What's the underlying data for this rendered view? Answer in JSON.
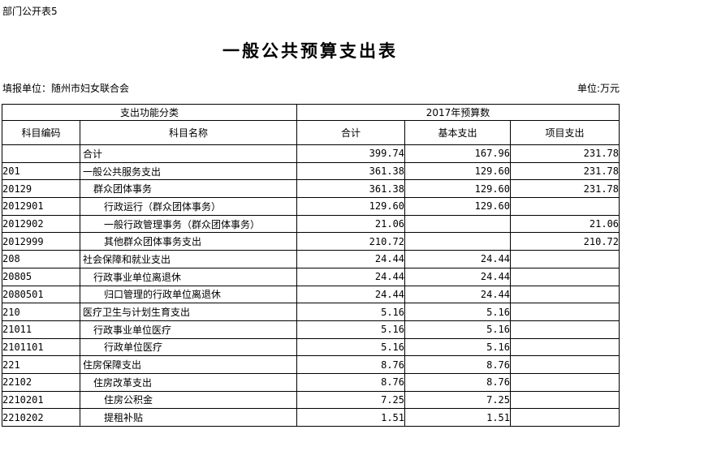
{
  "page": {
    "doc_label": "部门公开表5",
    "title": "一般公共预算支出表",
    "reporting_unit": "填报单位：随州市妇女联合会",
    "unit_note": "单位:万元"
  },
  "table": {
    "header": {
      "function_group": "支出功能分类",
      "budget_group": "2017年预算数",
      "col_code": "科目编码",
      "col_name": "科目名称",
      "col_total": "合计",
      "col_basic": "基本支出",
      "col_project": "项目支出"
    },
    "rows": [
      {
        "code": "",
        "name": "合计",
        "indent": 0,
        "total": "399.74",
        "basic": "167.96",
        "project": "231.78"
      },
      {
        "code": "201",
        "name": "一般公共服务支出",
        "indent": 0,
        "total": "361.38",
        "basic": "129.60",
        "project": "231.78"
      },
      {
        "code": "20129",
        "name": "群众团体事务",
        "indent": 1,
        "total": "361.38",
        "basic": "129.60",
        "project": "231.78"
      },
      {
        "code": "2012901",
        "name": "行政运行（群众团体事务）",
        "indent": 2,
        "total": "129.60",
        "basic": "129.60",
        "project": ""
      },
      {
        "code": "2012902",
        "name": "一般行政管理事务（群众团体事务）",
        "indent": 2,
        "total": "21.06",
        "basic": "",
        "project": "21.06"
      },
      {
        "code": "2012999",
        "name": "其他群众团体事务支出",
        "indent": 2,
        "total": "210.72",
        "basic": "",
        "project": "210.72"
      },
      {
        "code": "208",
        "name": "社会保障和就业支出",
        "indent": 0,
        "total": "24.44",
        "basic": "24.44",
        "project": ""
      },
      {
        "code": "20805",
        "name": "行政事业单位离退休",
        "indent": 1,
        "total": "24.44",
        "basic": "24.44",
        "project": ""
      },
      {
        "code": "2080501",
        "name": "归口管理的行政单位离退休",
        "indent": 2,
        "total": "24.44",
        "basic": "24.44",
        "project": ""
      },
      {
        "code": "210",
        "name": "医疗卫生与计划生育支出",
        "indent": 0,
        "total": "5.16",
        "basic": "5.16",
        "project": ""
      },
      {
        "code": "21011",
        "name": "行政事业单位医疗",
        "indent": 1,
        "total": "5.16",
        "basic": "5.16",
        "project": ""
      },
      {
        "code": "2101101",
        "name": "行政单位医疗",
        "indent": 2,
        "total": "5.16",
        "basic": "5.16",
        "project": ""
      },
      {
        "code": "221",
        "name": "住房保障支出",
        "indent": 0,
        "total": "8.76",
        "basic": "8.76",
        "project": ""
      },
      {
        "code": "22102",
        "name": "住房改革支出",
        "indent": 1,
        "total": "8.76",
        "basic": "8.76",
        "project": ""
      },
      {
        "code": "2210201",
        "name": "住房公积金",
        "indent": 2,
        "total": "7.25",
        "basic": "7.25",
        "project": ""
      },
      {
        "code": "2210202",
        "name": "提租补贴",
        "indent": 2,
        "total": "1.51",
        "basic": "1.51",
        "project": ""
      }
    ]
  }
}
